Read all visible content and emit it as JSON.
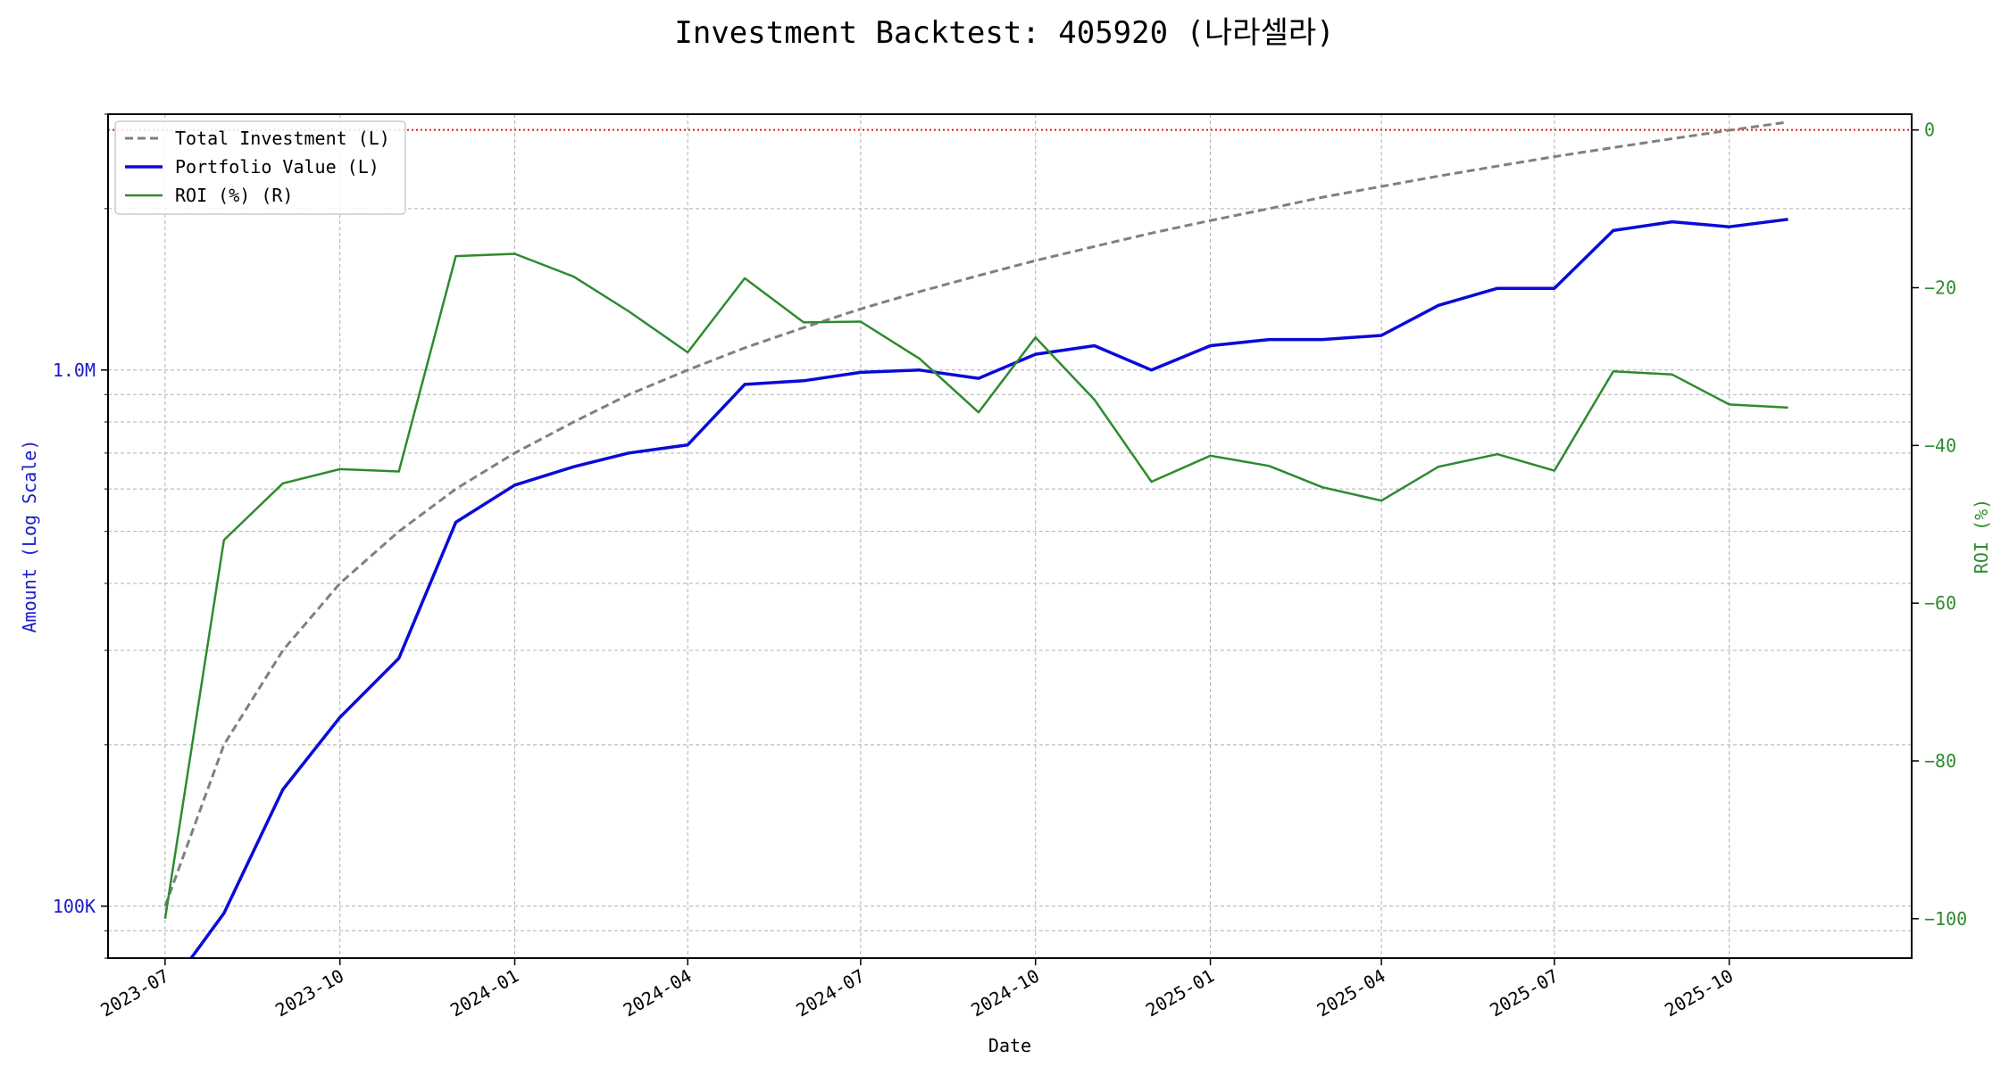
{
  "chart_data": {
    "type": "line",
    "title": "Investment Backtest: 405920 (나라셀라)",
    "xlabel": "Date",
    "ylabel_left": "Amount (Log Scale)",
    "ylabel_right": "ROI (%)",
    "left_axis_scale": "log",
    "left_ylim": [
      80000,
      3000000
    ],
    "right_ylim": [
      -105,
      2
    ],
    "left_ticks": [
      {
        "value": 100000,
        "label": "100K"
      },
      {
        "value": 1000000,
        "label": "1.0M"
      }
    ],
    "right_ticks": [
      {
        "value": 0,
        "label": "0"
      },
      {
        "value": -20,
        "label": "−20"
      },
      {
        "value": -40,
        "label": "−40"
      },
      {
        "value": -60,
        "label": "−60"
      },
      {
        "value": -80,
        "label": "−80"
      },
      {
        "value": -100,
        "label": "−100"
      }
    ],
    "x_range": [
      "2023-06-01",
      "2026-01-05"
    ],
    "x_ticks": [
      "2023-07",
      "2023-10",
      "2024-01",
      "2024-04",
      "2024-07",
      "2024-10",
      "2025-01",
      "2025-04",
      "2025-07",
      "2025-10"
    ],
    "grid": true,
    "legend_position": "top-left",
    "reference_line": {
      "axis": "right",
      "value": 0,
      "color": "#e41a1c",
      "style": "dotted"
    },
    "x": [
      "2023-07-01",
      "2023-08-01",
      "2023-09-01",
      "2023-10-01",
      "2023-11-01",
      "2023-12-01",
      "2024-01-01",
      "2024-02-01",
      "2024-03-01",
      "2024-04-01",
      "2024-05-01",
      "2024-06-01",
      "2024-07-01",
      "2024-08-01",
      "2024-09-01",
      "2024-10-01",
      "2024-11-01",
      "2024-12-01",
      "2025-01-01",
      "2025-02-01",
      "2025-03-01",
      "2025-04-01",
      "2025-05-01",
      "2025-06-01",
      "2025-07-01",
      "2025-08-01",
      "2025-09-01",
      "2025-10-01",
      "2025-11-01"
    ],
    "series": [
      {
        "name": "Total Investment (L)",
        "axis": "left",
        "color": "#808080",
        "style": "dashed",
        "values": [
          100000,
          200000,
          300000,
          400000,
          500000,
          600000,
          700000,
          800000,
          900000,
          1000000,
          1100000,
          1200000,
          1300000,
          1400000,
          1500000,
          1600000,
          1700000,
          1800000,
          1900000,
          2000000,
          2100000,
          2200000,
          2300000,
          2400000,
          2500000,
          2600000,
          2700000,
          2800000,
          2900000
        ]
      },
      {
        "name": "Portfolio Value (L)",
        "axis": "left",
        "color": "#0a0ad8",
        "style": "solid",
        "values": [
          0,
          97000,
          165000,
          225000,
          290000,
          520000,
          610000,
          660000,
          700000,
          725000,
          940000,
          955000,
          990000,
          1000000,
          965000,
          1070000,
          1110000,
          1000000,
          1110000,
          1140000,
          1140000,
          1160000,
          1320000,
          1420000,
          1420000,
          1820000,
          1890000,
          1850000,
          1910000
        ]
      },
      {
        "name": "ROI (%) (R)",
        "axis": "right",
        "color": "#2e8b2e",
        "style": "solid",
        "values": [
          -100,
          -52,
          -44.8,
          -43,
          -43.3,
          -16,
          -15.7,
          -18.6,
          -23,
          -28.2,
          -18.8,
          -24.4,
          -24.3,
          -29,
          -35.8,
          -26.3,
          -34.2,
          -44.6,
          -41.3,
          -42.6,
          -45.3,
          -47,
          -42.7,
          -41.1,
          -43.2,
          -30.6,
          -31,
          -34.8,
          -35.2
        ]
      }
    ]
  }
}
